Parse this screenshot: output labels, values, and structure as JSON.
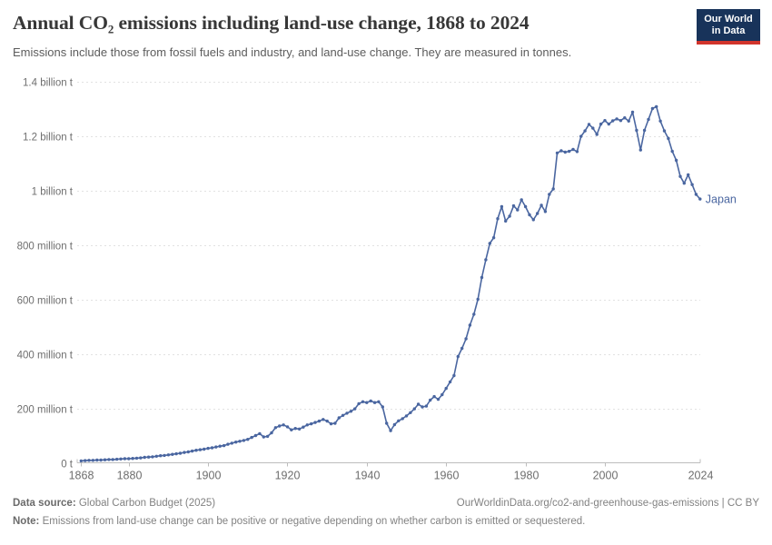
{
  "header": {
    "title": "Annual CO₂ emissions including land-use change, 1868 to 2024",
    "subtitle": "Emissions include those from fossil fuels and industry, and land-use change. They are measured in tonnes."
  },
  "logo": {
    "line1": "Our World",
    "line2": "in Data",
    "bg_color": "#18335a",
    "accent_color": "#d1342c"
  },
  "chart_data": {
    "type": "line",
    "title": "Annual CO₂ emissions including land-use change, 1868 to 2024",
    "entity": "Japan",
    "unit": "t",
    "line_color": "#4a66a0",
    "grid": true,
    "legend_position": "end-of-line",
    "x_range": [
      1868,
      2024
    ],
    "y_range_mt": [
      0,
      1400
    ],
    "x_ticks": [
      1868,
      1880,
      1900,
      1920,
      1940,
      1960,
      1980,
      2000,
      2024
    ],
    "y_ticks": [
      {
        "value_mt": 0,
        "label": "0 t"
      },
      {
        "value_mt": 200,
        "label": "200 million t"
      },
      {
        "value_mt": 400,
        "label": "400 million t"
      },
      {
        "value_mt": 600,
        "label": "600 million t"
      },
      {
        "value_mt": 800,
        "label": "800 million t"
      },
      {
        "value_mt": 1000,
        "label": "1 billion t"
      },
      {
        "value_mt": 1200,
        "label": "1.2 billion t"
      },
      {
        "value_mt": 1400,
        "label": "1.4 billion t"
      }
    ],
    "series": [
      {
        "name": "Japan",
        "start_year": 1868,
        "values_mt": [
          7,
          8,
          9,
          9,
          10,
          10,
          11,
          12,
          12,
          13,
          14,
          15,
          15,
          16,
          17,
          18,
          20,
          21,
          22,
          24,
          26,
          27,
          29,
          31,
          33,
          35,
          38,
          40,
          43,
          46,
          48,
          50,
          53,
          55,
          58,
          61,
          63,
          68,
          72,
          76,
          79,
          82,
          86,
          93,
          100,
          107,
          95,
          97,
          110,
          129,
          135,
          139,
          132,
          121,
          126,
          124,
          131,
          139,
          143,
          148,
          153,
          159,
          153,
          143,
          145,
          165,
          174,
          182,
          189,
          198,
          217,
          224,
          221,
          227,
          221,
          224,
          205,
          145,
          118,
          140,
          154,
          162,
          172,
          184,
          198,
          215,
          205,
          208,
          230,
          243,
          233,
          250,
          273,
          297,
          320,
          390,
          420,
          455,
          505,
          545,
          600,
          680,
          745,
          805,
          826,
          896,
          940,
          887,
          905,
          943,
          928,
          965,
          940,
          910,
          892,
          915,
          945,
          922,
          985,
          1005,
          1137,
          1145,
          1140,
          1143,
          1150,
          1142,
          1198,
          1218,
          1242,
          1228,
          1205,
          1243,
          1256,
          1243,
          1255,
          1262,
          1256,
          1266,
          1254,
          1287,
          1220,
          1148,
          1220,
          1260,
          1300,
          1307,
          1254,
          1218,
          1190,
          1143,
          1110,
          1051,
          1026,
          1057,
          1021,
          985,
          968
        ]
      }
    ]
  },
  "footer": {
    "datasource_label": "Data source:",
    "datasource_text": " Global Carbon Budget (2025)",
    "link": "OurWorldinData.org/co2-and-greenhouse-gas-emissions | CC BY",
    "note_label": "Note:",
    "note_text": " Emissions from land-use change can be positive or negative depending on whether carbon is emitted or sequestered."
  }
}
